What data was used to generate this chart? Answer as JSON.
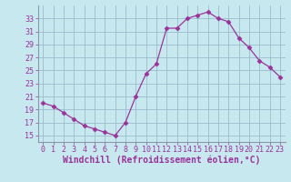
{
  "x": [
    0,
    1,
    2,
    3,
    4,
    5,
    6,
    7,
    8,
    9,
    10,
    11,
    12,
    13,
    14,
    15,
    16,
    17,
    18,
    19,
    20,
    21,
    22,
    23
  ],
  "y": [
    20,
    19.5,
    18.5,
    17.5,
    16.5,
    16,
    15.5,
    15,
    17,
    21,
    24.5,
    26,
    31.5,
    31.5,
    33,
    33.5,
    34,
    33,
    32.5,
    30,
    28.5,
    26.5,
    25.5,
    24
  ],
  "line_color": "#993399",
  "marker": "D",
  "marker_size": 2.5,
  "bg_color": "#c8e8f0",
  "grid_color": "#99bbcc",
  "xlabel": "Windchill (Refroidissement éolien,°C)",
  "xlabel_color": "#993399",
  "tick_color": "#993399",
  "spine_color": "#8899aa",
  "ylim": [
    14,
    35
  ],
  "yticks": [
    15,
    17,
    19,
    21,
    23,
    25,
    27,
    29,
    31,
    33
  ],
  "xticks": [
    0,
    1,
    2,
    3,
    4,
    5,
    6,
    7,
    8,
    9,
    10,
    11,
    12,
    13,
    14,
    15,
    16,
    17,
    18,
    19,
    20,
    21,
    22,
    23
  ],
  "tick_fontsize": 6,
  "xlabel_fontsize": 7
}
